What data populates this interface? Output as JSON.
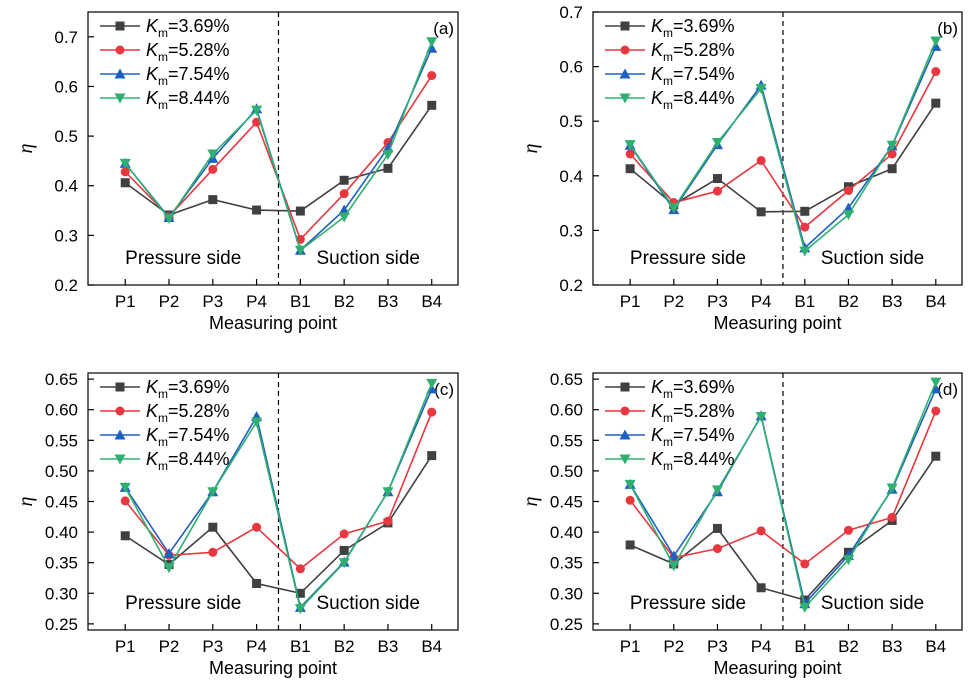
{
  "figure": {
    "panels": [
      {
        "panel_label": "(a)",
        "pressure_label": "Pressure side",
        "suction_label": "Suction side",
        "chart_data": {
          "type": "line",
          "categories": [
            "P1",
            "P2",
            "P3",
            "P4",
            "B1",
            "B2",
            "B3",
            "B4"
          ],
          "xlabel": "Measuring point",
          "ylabel": "η",
          "ylim": [
            0.2,
            0.75
          ],
          "yticks": [
            "0.2",
            "0.3",
            "0.4",
            "0.5",
            "0.6",
            "0.7"
          ],
          "grid": false,
          "legend_position": "top-left",
          "series": [
            {
              "name": "K_m=3.69%",
              "values": [
                0.406,
                0.341,
                0.372,
                0.351,
                0.349,
                0.411,
                0.435,
                0.562
              ]
            },
            {
              "name": "K_m=5.28%",
              "values": [
                0.428,
                0.338,
                0.433,
                0.528,
                0.292,
                0.384,
                0.487,
                0.622
              ]
            },
            {
              "name": "K_m=7.54%",
              "values": [
                0.445,
                0.336,
                0.455,
                0.555,
                0.27,
                0.351,
                0.476,
                0.677
              ]
            },
            {
              "name": "K_m=8.44%",
              "values": [
                0.445,
                0.334,
                0.464,
                0.552,
                0.27,
                0.337,
                0.463,
                0.69
              ]
            }
          ]
        }
      },
      {
        "panel_label": "(b)",
        "pressure_label": "Pressure side",
        "suction_label": "Suction side",
        "chart_data": {
          "type": "line",
          "categories": [
            "P1",
            "P2",
            "P3",
            "P4",
            "B1",
            "B2",
            "B3",
            "B4"
          ],
          "xlabel": "Measuring point",
          "ylabel": "η",
          "ylim": [
            0.2,
            0.7
          ],
          "yticks": [
            "0.2",
            "0.3",
            "0.4",
            "0.5",
            "0.6",
            "0.7"
          ],
          "grid": false,
          "legend_position": "top-left",
          "series": [
            {
              "name": "K_m=3.69%",
              "values": [
                0.413,
                0.347,
                0.395,
                0.334,
                0.335,
                0.38,
                0.413,
                0.533
              ]
            },
            {
              "name": "K_m=5.28%",
              "values": [
                0.44,
                0.351,
                0.372,
                0.428,
                0.306,
                0.373,
                0.44,
                0.591
              ]
            },
            {
              "name": "K_m=7.54%",
              "values": [
                0.456,
                0.338,
                0.457,
                0.566,
                0.268,
                0.341,
                0.455,
                0.637
              ]
            },
            {
              "name": "K_m=8.44%",
              "values": [
                0.457,
                0.341,
                0.461,
                0.56,
                0.262,
                0.329,
                0.456,
                0.647
              ]
            }
          ]
        }
      },
      {
        "panel_label": "(c)",
        "pressure_label": "Pressure side",
        "suction_label": "Suction side",
        "chart_data": {
          "type": "line",
          "categories": [
            "P1",
            "P2",
            "P3",
            "P4",
            "B1",
            "B2",
            "B3",
            "B4"
          ],
          "xlabel": "Measuring point",
          "ylabel": "η",
          "ylim": [
            0.24,
            0.66
          ],
          "yticks": [
            "0.25",
            "0.30",
            "0.35",
            "0.40",
            "0.45",
            "0.50",
            "0.55",
            "0.60",
            "0.65"
          ],
          "grid": false,
          "legend_position": "top-left",
          "series": [
            {
              "name": "K_m=3.69%",
              "values": [
                0.394,
                0.347,
                0.408,
                0.316,
                0.3,
                0.37,
                0.415,
                0.525
              ]
            },
            {
              "name": "K_m=5.28%",
              "values": [
                0.451,
                0.362,
                0.367,
                0.408,
                0.34,
                0.397,
                0.418,
                0.596
              ]
            },
            {
              "name": "K_m=7.54%",
              "values": [
                0.473,
                0.365,
                0.466,
                0.589,
                0.277,
                0.351,
                0.466,
                0.634
              ]
            },
            {
              "name": "K_m=8.44%",
              "values": [
                0.473,
                0.342,
                0.466,
                0.58,
                0.275,
                0.35,
                0.466,
                0.643
              ]
            }
          ]
        }
      },
      {
        "panel_label": "(d)",
        "pressure_label": "Pressure side",
        "suction_label": "Suction side",
        "chart_data": {
          "type": "line",
          "categories": [
            "P1",
            "P2",
            "P3",
            "P4",
            "B1",
            "B2",
            "B3",
            "B4"
          ],
          "xlabel": "Measuring point",
          "ylabel": "η",
          "ylim": [
            0.24,
            0.66
          ],
          "yticks": [
            "0.25",
            "0.30",
            "0.35",
            "0.40",
            "0.45",
            "0.50",
            "0.55",
            "0.60",
            "0.65"
          ],
          "grid": false,
          "legend_position": "top-left",
          "series": [
            {
              "name": "K_m=3.69%",
              "values": [
                0.379,
                0.348,
                0.406,
                0.309,
                0.289,
                0.367,
                0.419,
                0.524
              ]
            },
            {
              "name": "K_m=5.28%",
              "values": [
                0.452,
                0.358,
                0.373,
                0.402,
                0.348,
                0.403,
                0.424,
                0.598
              ]
            },
            {
              "name": "K_m=7.54%",
              "values": [
                0.478,
                0.361,
                0.466,
                0.59,
                0.283,
                0.362,
                0.47,
                0.634
              ]
            },
            {
              "name": "K_m=8.44%",
              "values": [
                0.478,
                0.345,
                0.469,
                0.589,
                0.277,
                0.355,
                0.472,
                0.645
              ]
            }
          ]
        }
      }
    ],
    "series_styles": [
      {
        "color": "#404040",
        "marker": "square"
      },
      {
        "color": "#e8373f",
        "marker": "circle"
      },
      {
        "color": "#2060c0",
        "marker": "triangle-up"
      },
      {
        "color": "#30b070",
        "marker": "triangle-down"
      }
    ]
  }
}
